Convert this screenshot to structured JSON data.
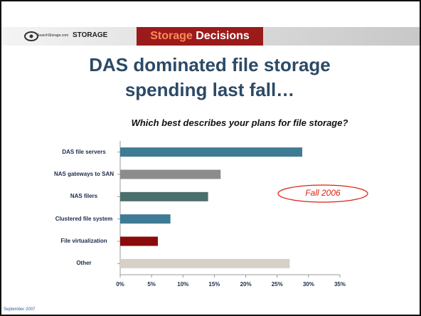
{
  "header": {
    "logo": "SearchStorage.com",
    "brand": "STORAGE",
    "event_first": "Storage",
    "event_second": "Decisions"
  },
  "footer": "September 2007",
  "chart_data": {
    "type": "hbar",
    "title": "DAS dominated file storage spending last fall…",
    "subtitle": "Which best describes your plans for file storage?",
    "annotation": "Fall 2006",
    "categories": [
      "DAS file servers",
      "NAS gateways to SAN",
      "NAS filers",
      "Clustered file system",
      "File virtualization",
      "Other"
    ],
    "values": [
      29,
      16,
      14,
      8,
      6,
      27
    ],
    "colors": [
      "#3e7b94",
      "#8c8c8c",
      "#4b6f6c",
      "#3e7b94",
      "#8b0a0a",
      "#d7d0c7"
    ],
    "xlim": [
      0,
      35
    ],
    "xticks": [
      {
        "value": 0,
        "label": "0%"
      },
      {
        "value": 5,
        "label": "5%"
      },
      {
        "value": 10,
        "label": "10%"
      },
      {
        "value": 15,
        "label": "15%"
      },
      {
        "value": 20,
        "label": "20%"
      },
      {
        "value": 25,
        "label": "25%"
      },
      {
        "value": 30,
        "label": "30%"
      },
      {
        "value": 35,
        "label": "35%"
      }
    ],
    "grid": false
  }
}
